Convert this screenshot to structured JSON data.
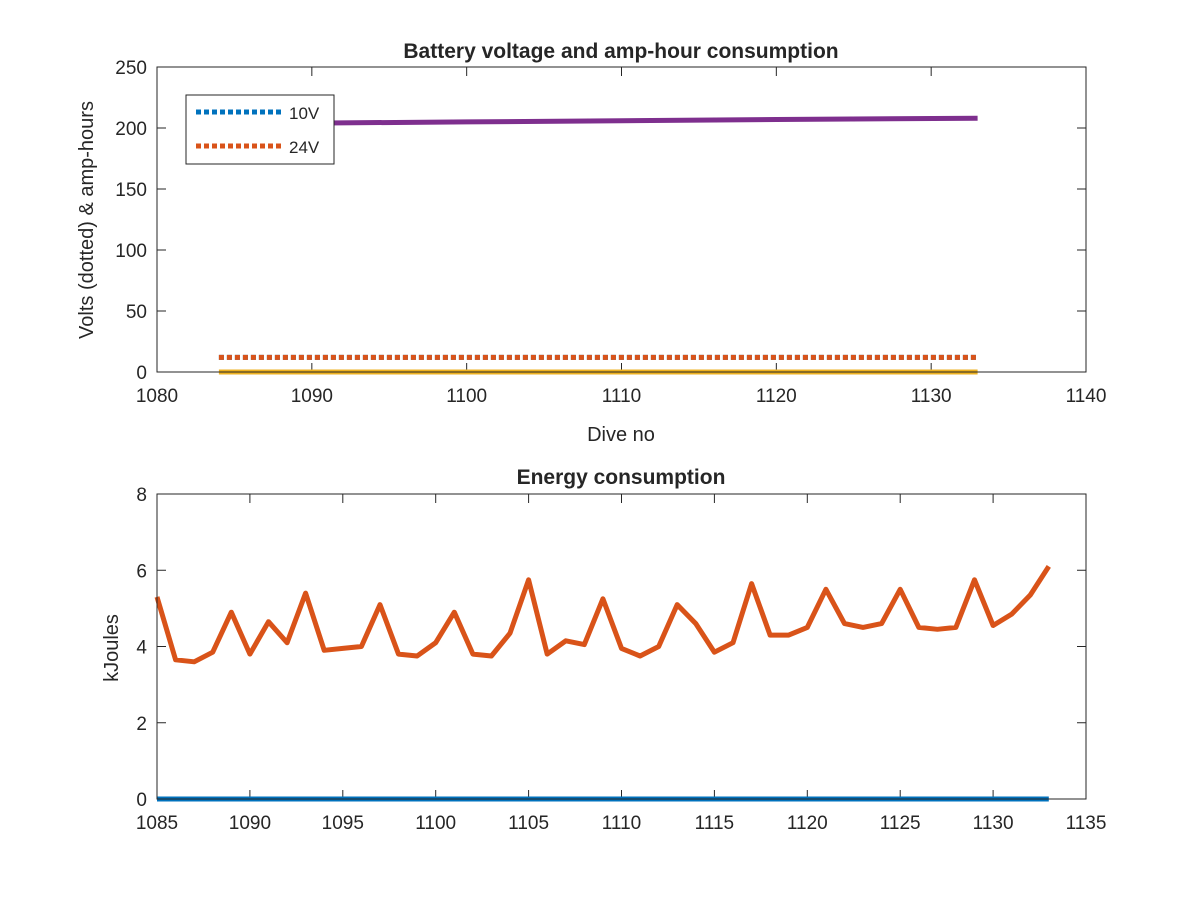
{
  "chart_data": [
    {
      "type": "line",
      "title": "Battery voltage and amp-hour consumption",
      "xlabel": "Dive no",
      "ylabel": "Volts (dotted) & amp-hours",
      "xlim": [
        1080,
        1140
      ],
      "ylim": [
        0,
        250
      ],
      "xticks": [
        "1080",
        "1090",
        "1100",
        "1110",
        "1120",
        "1130",
        "1140"
      ],
      "yticks": [
        "0",
        "50",
        "100",
        "150",
        "200",
        "250"
      ],
      "grid": false,
      "legend_placement": "top-left",
      "series": [
        {
          "name": "10V",
          "style": "dotted",
          "color": "#0072BD",
          "x": [
            1084,
            1133
          ],
          "y": [
            12,
            12
          ]
        },
        {
          "name": "24V",
          "style": "dotted",
          "color": "#D95319",
          "x": [
            1084,
            1133
          ],
          "y": [
            12,
            12
          ]
        },
        {
          "style": "solid",
          "color": "#EDB120",
          "x": [
            1084,
            1133
          ],
          "y": [
            0,
            0
          ]
        },
        {
          "style": "solid",
          "color": "#7E2F8E",
          "x": [
            1084,
            1090,
            1100,
            1110,
            1120,
            1133
          ],
          "y": [
            203,
            204,
            205,
            206,
            207,
            208
          ]
        }
      ]
    },
    {
      "type": "line",
      "title": "Energy consumption",
      "xlabel": "",
      "ylabel": "kJoules",
      "xlim": [
        1085,
        1135
      ],
      "ylim": [
        0,
        8
      ],
      "xticks": [
        "1085",
        "1090",
        "1095",
        "1100",
        "1105",
        "1110",
        "1115",
        "1120",
        "1125",
        "1130",
        "1135"
      ],
      "yticks": [
        "0",
        "2",
        "4",
        "6",
        "8"
      ],
      "grid": false,
      "series": [
        {
          "style": "solid",
          "color": "#D95319",
          "x": [
            1085,
            1086,
            1087,
            1088,
            1089,
            1090,
            1091,
            1092,
            1093,
            1094,
            1095,
            1096,
            1097,
            1098,
            1099,
            1100,
            1101,
            1102,
            1103,
            1104,
            1105,
            1106,
            1107,
            1108,
            1109,
            1110,
            1111,
            1112,
            1113,
            1114,
            1115,
            1116,
            1117,
            1118,
            1119,
            1120,
            1121,
            1122,
            1123,
            1124,
            1125,
            1126,
            1127,
            1128,
            1129,
            1130,
            1131,
            1132,
            1133
          ],
          "y": [
            5.3,
            3.65,
            3.6,
            3.85,
            4.9,
            3.8,
            4.65,
            4.1,
            5.4,
            3.9,
            3.95,
            4.0,
            5.1,
            3.8,
            3.75,
            4.1,
            4.9,
            3.8,
            3.75,
            4.35,
            5.75,
            3.8,
            4.15,
            4.05,
            5.25,
            3.95,
            3.75,
            4.0,
            5.1,
            4.6,
            3.85,
            4.1,
            5.65,
            4.3,
            4.3,
            4.5,
            5.5,
            4.6,
            4.5,
            4.6,
            5.5,
            4.5,
            4.45,
            4.5,
            5.75,
            4.55,
            4.85,
            5.35,
            6.1
          ]
        },
        {
          "style": "solid",
          "color": "#0072BD",
          "x": [
            1085,
            1133
          ],
          "y": [
            0,
            0
          ]
        }
      ]
    }
  ]
}
